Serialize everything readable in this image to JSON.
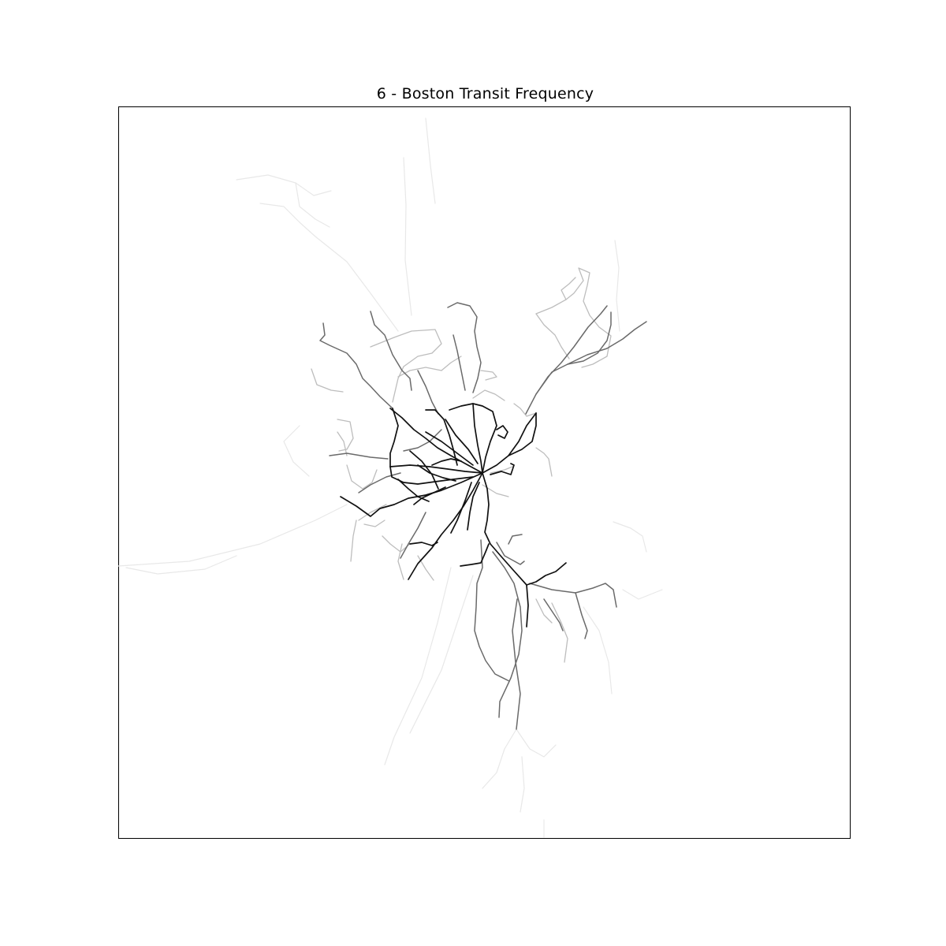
{
  "figure": {
    "title": "6 - Boston Transit Frequency"
  },
  "legend": {
    "encoding": "line darkness = service frequency",
    "colors": {
      "high": "#000000",
      "medium": "#555555",
      "low": "#9a9a9a",
      "very_low": "#dddddd"
    }
  },
  "map": {
    "region": "Boston area transit network",
    "frequency_levels": [
      "high",
      "medium",
      "low",
      "very_low"
    ],
    "ticks_visible": false,
    "grid": false
  }
}
